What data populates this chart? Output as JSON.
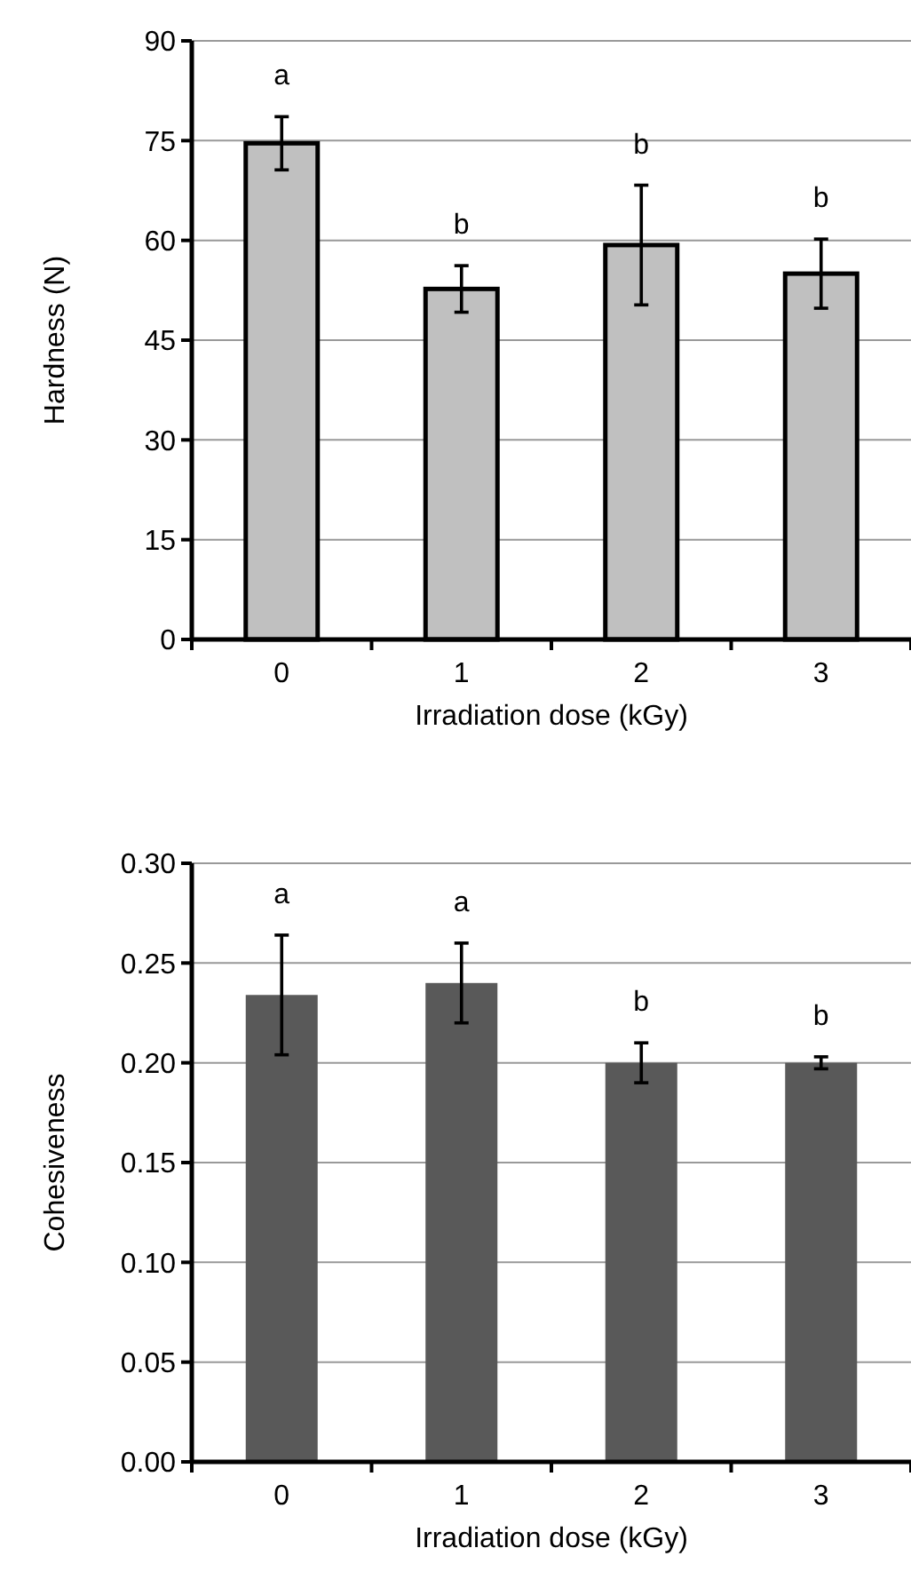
{
  "chart_data": [
    {
      "type": "bar",
      "xlabel": "Irradiation dose (kGy)",
      "ylabel": "Hardness (N)",
      "categories": [
        "0",
        "1",
        "2",
        "3"
      ],
      "values": [
        74.6,
        52.7,
        59.3,
        55.0
      ],
      "errors": [
        4,
        3.5,
        9,
        5.2
      ],
      "color": "#c0c0c0",
      "ylim": [
        0,
        90
      ],
      "yticks": [
        0,
        15,
        30,
        45,
        60,
        75,
        90
      ],
      "grid": "y",
      "annotations": [
        "a",
        "b",
        "b",
        "b"
      ]
    },
    {
      "type": "bar",
      "xlabel": "Irradiation dose (kGy)",
      "ylabel": "Cohesiveness",
      "categories": [
        "0",
        "1",
        "2",
        "3"
      ],
      "values": [
        0.234,
        0.24,
        0.2,
        0.2
      ],
      "errors": [
        0.03,
        0.02,
        0.01,
        0.003
      ],
      "color": "#595959",
      "ylim": [
        0,
        0.3
      ],
      "yticks": [
        {
          "value": 0,
          "label": "0.00"
        },
        {
          "value": 0.05,
          "label": "0.05"
        },
        {
          "value": 0.1,
          "label": "0.10"
        },
        {
          "value": 0.15,
          "label": "0.15"
        },
        {
          "value": 0.2,
          "label": "0.20"
        },
        {
          "value": 0.25,
          "label": "0.25"
        },
        {
          "value": 0.3,
          "label": "0.30"
        }
      ],
      "grid": "y",
      "annotations": [
        "a",
        "a",
        "b",
        "b"
      ]
    }
  ]
}
